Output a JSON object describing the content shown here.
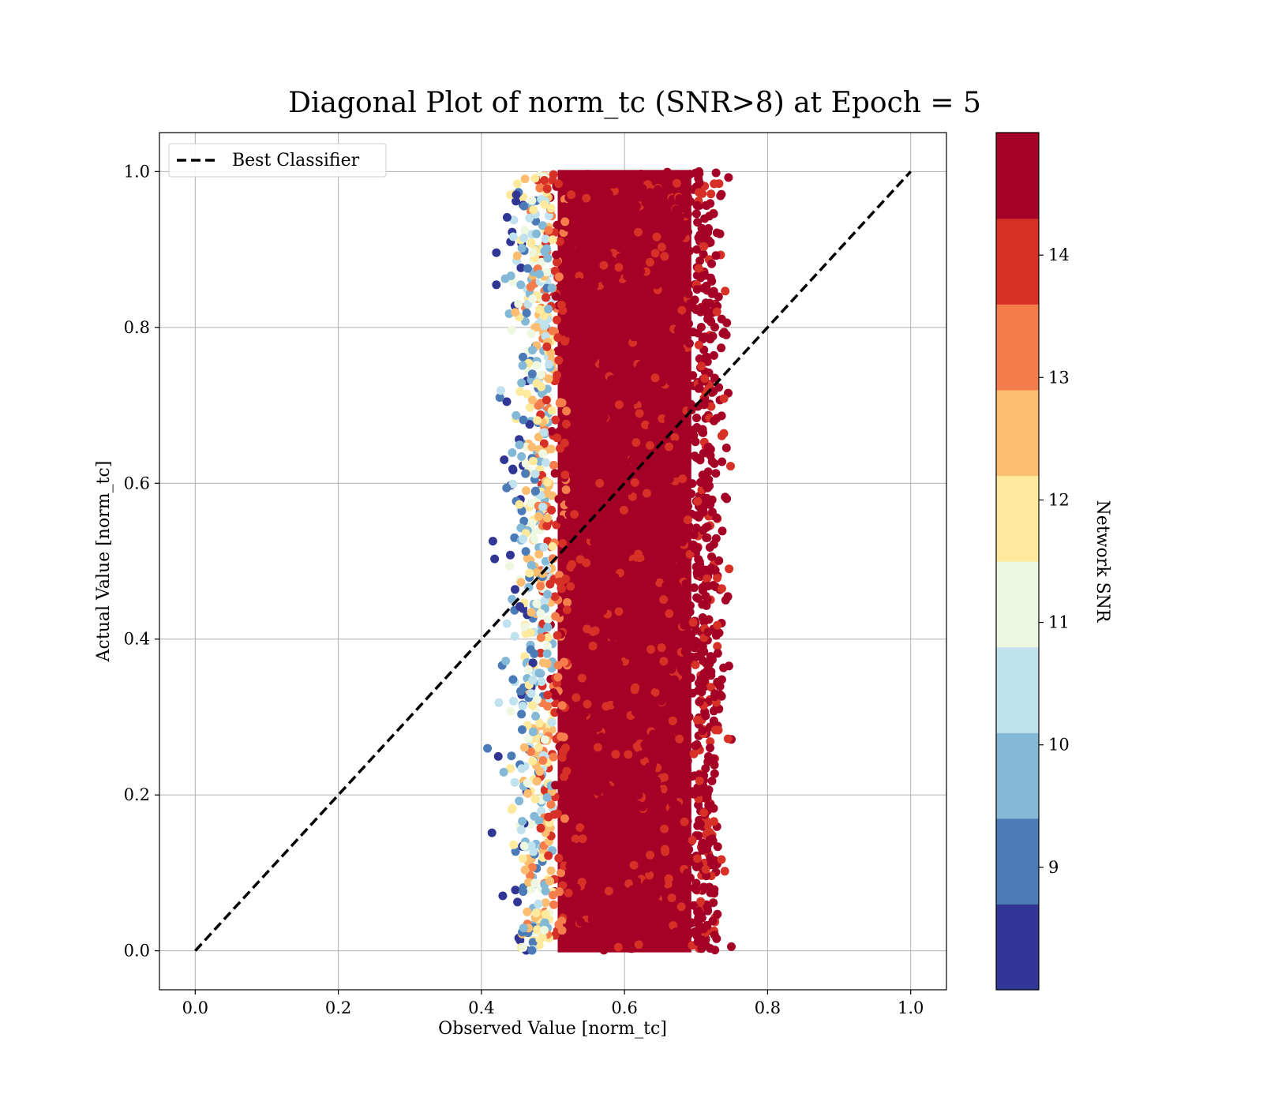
{
  "chart_data": {
    "type": "scatter",
    "title": "Diagonal Plot of norm_tc (SNR>8) at Epoch = 5",
    "xlabel": "Observed Value [norm_tc]",
    "ylabel": "Actual Value [norm_tc]",
    "xlim": [
      -0.05,
      1.05
    ],
    "ylim": [
      -0.05,
      1.05
    ],
    "xticks": [
      "0.0",
      "0.2",
      "0.4",
      "0.6",
      "0.8",
      "1.0"
    ],
    "yticks": [
      "0.0",
      "0.2",
      "0.4",
      "0.6",
      "0.8",
      "1.0"
    ],
    "grid": true,
    "legend": {
      "placement": "top-left",
      "entries": [
        "Best Classifier"
      ]
    },
    "reference_line": {
      "name": "Best Classifier",
      "x": [
        0.0,
        1.0
      ],
      "y": [
        0.0,
        1.0
      ],
      "style": "dashed",
      "color": "#000000"
    },
    "scatter_cloud": {
      "x_range": [
        0.38,
        0.76
      ],
      "y_range": [
        0.0,
        1.0
      ],
      "dense_core_x_range": [
        0.5,
        0.7
      ],
      "description_of_density": "dense high-SNR core centred near x=0.6; low-SNR points spread toward x=0.4"
    },
    "colorbar": {
      "label": "Network SNR",
      "min": 8,
      "max": 15,
      "ticks": [
        "9",
        "10",
        "11",
        "12",
        "13",
        "14"
      ],
      "colors": [
        "#313695",
        "#4a7bb7",
        "#84b8d7",
        "#c0e2ee",
        "#eef7e0",
        "#fee99c",
        "#fcbd70",
        "#f47d4b",
        "#d73027",
        "#a50026"
      ]
    }
  }
}
